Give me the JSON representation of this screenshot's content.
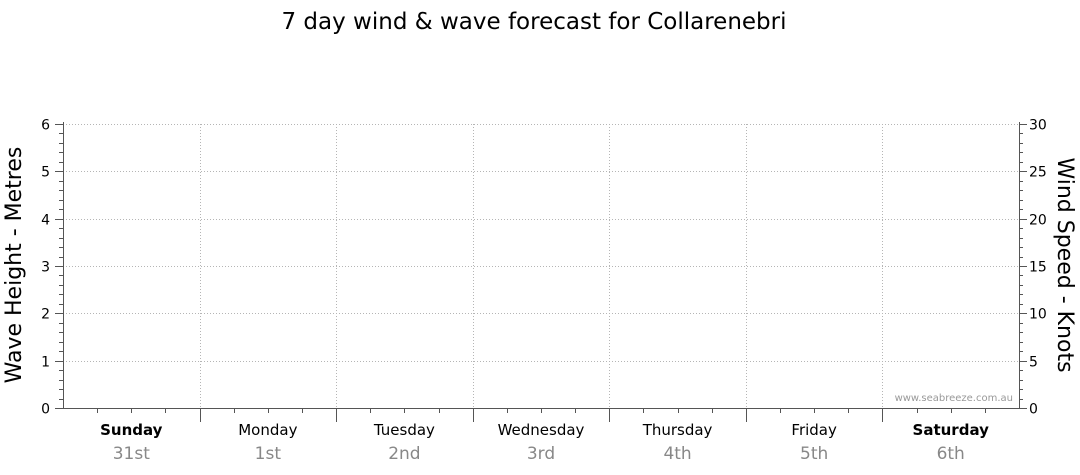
{
  "chart_data": {
    "type": "line",
    "title": "7 day wind & wave forecast for Collarenebri",
    "ylabel_left": "Wave Height - Metres",
    "ylabel_right": "Wind Speed - Knots",
    "ylim_left": [
      0,
      6
    ],
    "ylim_right": [
      0,
      30
    ],
    "yticks_left": [
      "0",
      "1",
      "2",
      "3",
      "4",
      "5",
      "6"
    ],
    "yticks_right": [
      "0",
      "5",
      "10",
      "15",
      "20",
      "25",
      "30"
    ],
    "days": [
      {
        "name": "Sunday",
        "date": "31st",
        "weekend": true
      },
      {
        "name": "Monday",
        "date": "1st",
        "weekend": false
      },
      {
        "name": "Tuesday",
        "date": "2nd",
        "weekend": false
      },
      {
        "name": "Wednesday",
        "date": "3rd",
        "weekend": false
      },
      {
        "name": "Thursday",
        "date": "4th",
        "weekend": false
      },
      {
        "name": "Friday",
        "date": "5th",
        "weekend": false
      },
      {
        "name": "Saturday",
        "date": "6th",
        "weekend": true
      }
    ],
    "series": [],
    "grid": true,
    "watermark": "www.seabreeze.com.au"
  }
}
